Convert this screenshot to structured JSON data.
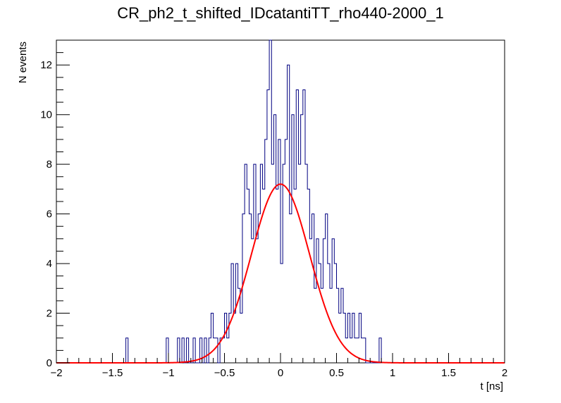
{
  "chart_data": {
    "type": "bar",
    "title": "CR_ph2_t_shifted_IDcatantiTT_rho440-2000_1",
    "xlabel": "t [ns]",
    "ylabel": "N events",
    "xlim": [
      -2,
      2
    ],
    "ylim": [
      0,
      13
    ],
    "grid": false,
    "x_ticks": [
      "−2",
      "−1.5",
      "−1",
      "−0.5",
      "0",
      "0.5",
      "1",
      "1.5",
      "2"
    ],
    "y_ticks": [
      "0",
      "2",
      "4",
      "6",
      "8",
      "10",
      "12"
    ],
    "series": [
      {
        "style": "step-histogram",
        "color": "#000080",
        "bin_width": 0.02,
        "bins": [
          [
            -1.38,
            1
          ],
          [
            -1.02,
            1
          ],
          [
            -0.92,
            1
          ],
          [
            -0.88,
            1
          ],
          [
            -0.84,
            1
          ],
          [
            -0.78,
            1
          ],
          [
            -0.72,
            1
          ],
          [
            -0.68,
            1
          ],
          [
            -0.64,
            1
          ],
          [
            -0.62,
            2
          ],
          [
            -0.6,
            1
          ],
          [
            -0.58,
            1
          ],
          [
            -0.54,
            1
          ],
          [
            -0.52,
            1
          ],
          [
            -0.5,
            2
          ],
          [
            -0.48,
            1
          ],
          [
            -0.46,
            2
          ],
          [
            -0.44,
            4
          ],
          [
            -0.42,
            2
          ],
          [
            -0.4,
            4
          ],
          [
            -0.38,
            3
          ],
          [
            -0.36,
            2
          ],
          [
            -0.34,
            6
          ],
          [
            -0.32,
            8
          ],
          [
            -0.3,
            7
          ],
          [
            -0.28,
            6
          ],
          [
            -0.26,
            5
          ],
          [
            -0.24,
            8
          ],
          [
            -0.22,
            5
          ],
          [
            -0.2,
            6
          ],
          [
            -0.18,
            8
          ],
          [
            -0.16,
            7
          ],
          [
            -0.14,
            9
          ],
          [
            -0.12,
            11
          ],
          [
            -0.1,
            13
          ],
          [
            -0.08,
            8
          ],
          [
            -0.06,
            10
          ],
          [
            -0.04,
            7
          ],
          [
            -0.02,
            9
          ],
          [
            0.0,
            4
          ],
          [
            0.02,
            8
          ],
          [
            0.04,
            9
          ],
          [
            0.06,
            12
          ],
          [
            0.08,
            6
          ],
          [
            0.1,
            10
          ],
          [
            0.12,
            7
          ],
          [
            0.14,
            11
          ],
          [
            0.16,
            8
          ],
          [
            0.18,
            10
          ],
          [
            0.2,
            11
          ],
          [
            0.22,
            8
          ],
          [
            0.24,
            7
          ],
          [
            0.26,
            5
          ],
          [
            0.28,
            6
          ],
          [
            0.3,
            3
          ],
          [
            0.32,
            5
          ],
          [
            0.34,
            4
          ],
          [
            0.36,
            3
          ],
          [
            0.38,
            5
          ],
          [
            0.4,
            6
          ],
          [
            0.42,
            4
          ],
          [
            0.44,
            3
          ],
          [
            0.46,
            5
          ],
          [
            0.48,
            4
          ],
          [
            0.5,
            3
          ],
          [
            0.52,
            2
          ],
          [
            0.54,
            3
          ],
          [
            0.56,
            2
          ],
          [
            0.58,
            1
          ],
          [
            0.6,
            2
          ],
          [
            0.62,
            1
          ],
          [
            0.64,
            2
          ],
          [
            0.66,
            1
          ],
          [
            0.68,
            1
          ],
          [
            0.7,
            2
          ],
          [
            0.72,
            1
          ],
          [
            0.74,
            1
          ],
          [
            0.88,
            1
          ]
        ]
      },
      {
        "style": "fit-curve",
        "function": "gaussian",
        "color": "#ff0000",
        "amplitude": 7.2,
        "mean": 0.0,
        "sigma": 0.26
      }
    ]
  }
}
